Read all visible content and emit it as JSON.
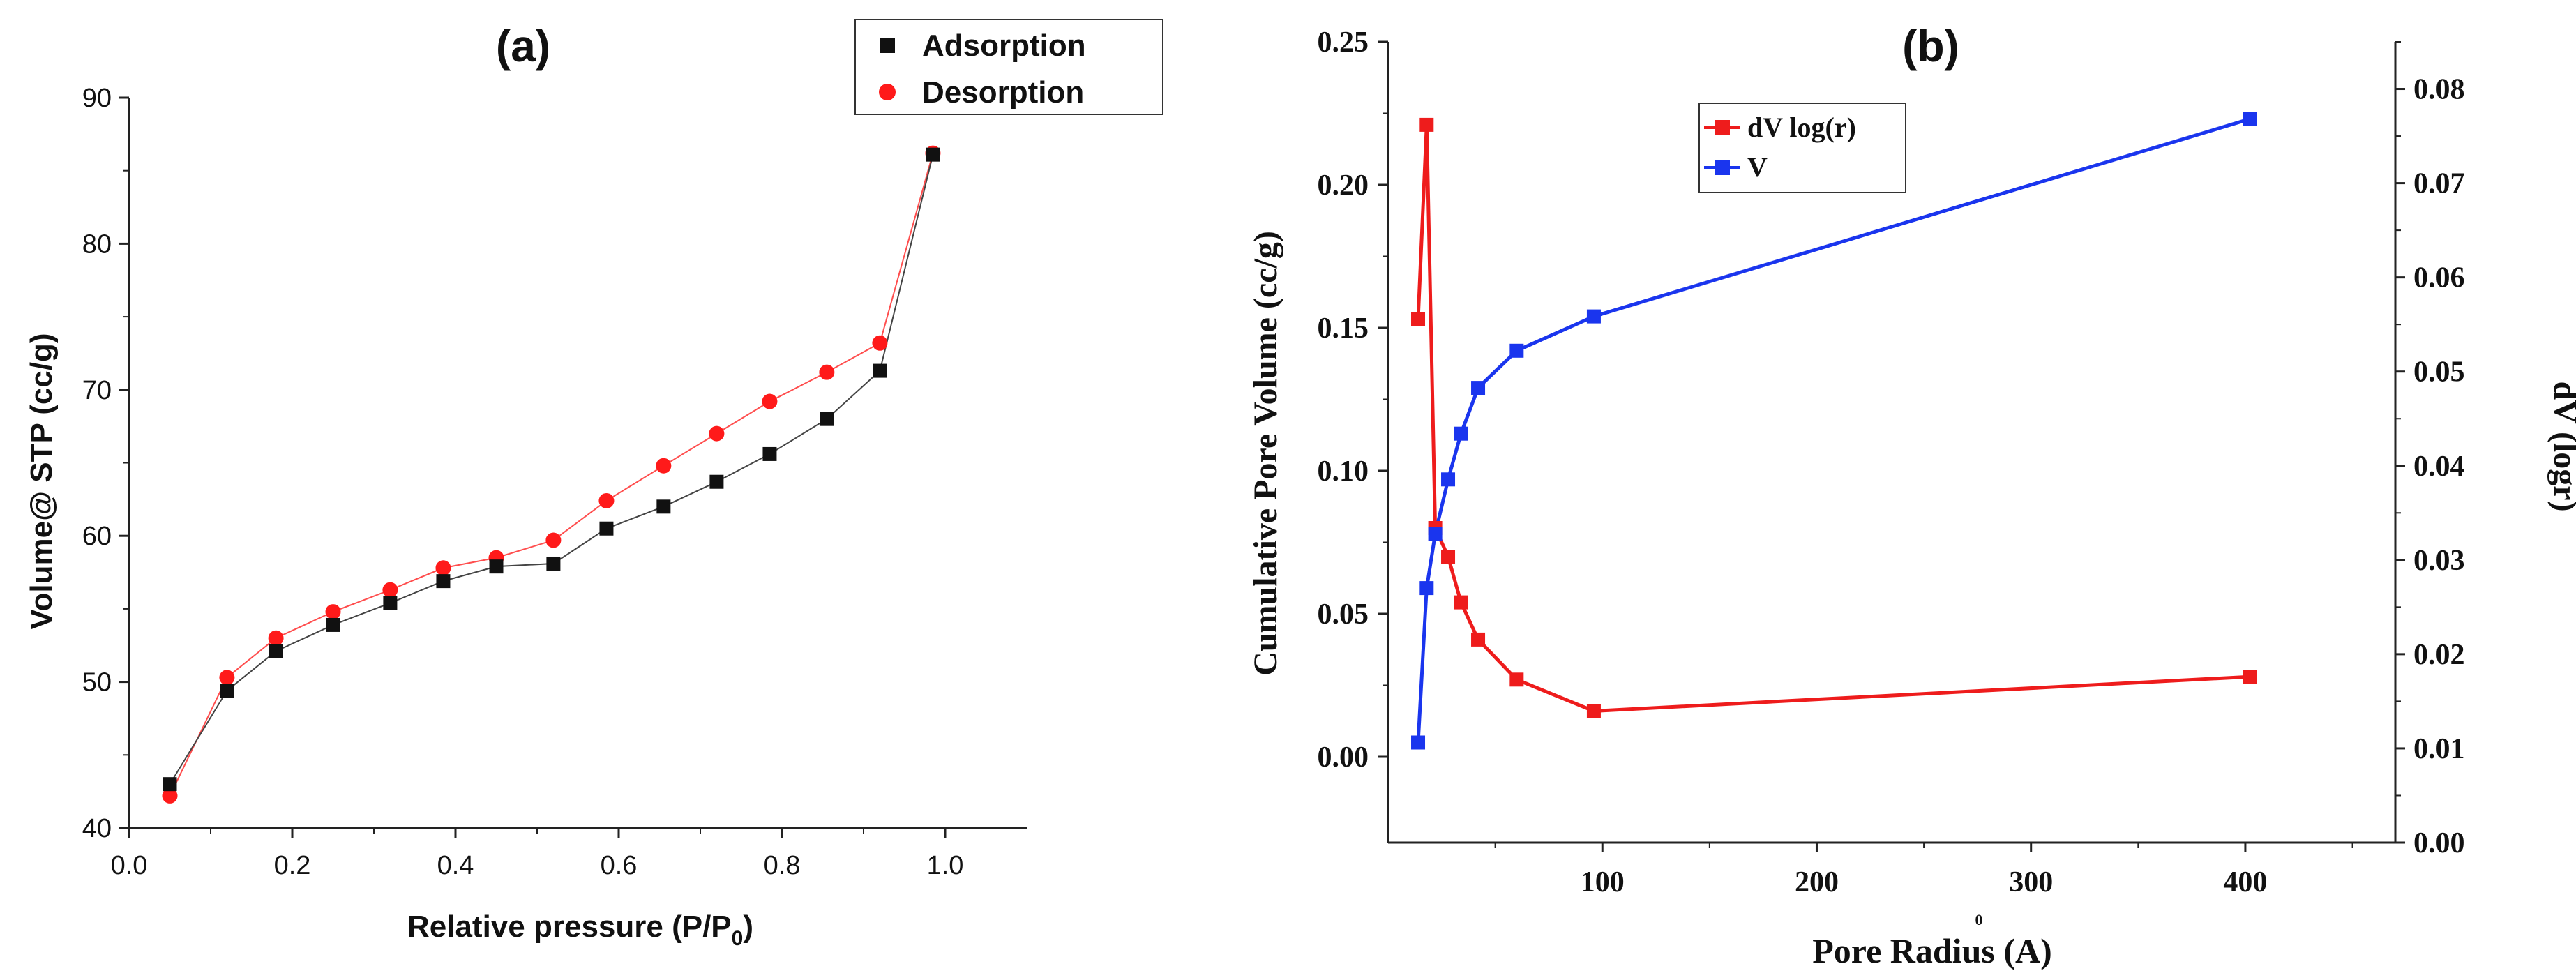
{
  "chart_data": [
    {
      "id": "a",
      "type": "line",
      "panel_label": "(a)",
      "title": "",
      "xlabel": "Relative pressure (P/P",
      "xlabel_sub": "0",
      "xlabel_close": ")",
      "ylabel": "Volume@ STP (cc/g)",
      "xlim": [
        0.0,
        1.1
      ],
      "ylim": [
        40,
        90
      ],
      "xticks": [
        0.0,
        0.2,
        0.4,
        0.6,
        0.8,
        1.0
      ],
      "xtick_labels": [
        "0.0",
        "0.2",
        "0.4",
        "0.6",
        "0.8",
        "1.0"
      ],
      "yticks": [
        40,
        50,
        60,
        70,
        80,
        90
      ],
      "ytick_labels": [
        "40",
        "50",
        "60",
        "70",
        "80",
        "90"
      ],
      "grid": false,
      "legend_position": "top-right",
      "series": [
        {
          "name": "Adsorption",
          "marker": "square",
          "color": "#111111",
          "x": [
            0.05,
            0.12,
            0.18,
            0.25,
            0.32,
            0.385,
            0.45,
            0.52,
            0.585,
            0.655,
            0.72,
            0.785,
            0.855,
            0.92,
            0.985
          ],
          "y": [
            43.0,
            49.4,
            52.1,
            53.9,
            55.4,
            56.9,
            57.9,
            58.1,
            60.5,
            62.0,
            63.7,
            65.6,
            68.0,
            71.3,
            86.1
          ]
        },
        {
          "name": "Desorption",
          "marker": "circle",
          "color": "#ff1a1a",
          "x": [
            0.05,
            0.12,
            0.18,
            0.25,
            0.32,
            0.385,
            0.45,
            0.52,
            0.585,
            0.655,
            0.72,
            0.785,
            0.855,
            0.92,
            0.985
          ],
          "y": [
            42.2,
            50.3,
            53.0,
            54.8,
            56.3,
            57.8,
            58.5,
            59.7,
            62.4,
            64.8,
            67.0,
            69.2,
            71.2,
            73.2,
            86.2
          ]
        }
      ]
    },
    {
      "id": "b",
      "type": "line",
      "panel_label": "(b)",
      "title": "",
      "xlabel": "Pore Radius (",
      "xlabel_unit": "A",
      "xlabel_unit_mark": "0",
      "xlabel_close": ")",
      "ylabel": "Cumulative Pore Volume (cc/g)",
      "ylabel_right": "dV (logr)",
      "xlim": [
        0,
        470
      ],
      "ylim": [
        -0.03,
        0.25
      ],
      "ylim_right": [
        0.0,
        0.085
      ],
      "xticks": [
        100,
        200,
        300,
        400
      ],
      "xtick_labels": [
        "100",
        "200",
        "300",
        "400"
      ],
      "yticks": [
        0.0,
        0.05,
        0.1,
        0.15,
        0.2,
        0.25
      ],
      "ytick_labels": [
        "0.00",
        "0.05",
        "0.10",
        "0.15",
        "0.20",
        "0.25"
      ],
      "yticks_right": [
        0.0,
        0.01,
        0.02,
        0.03,
        0.04,
        0.05,
        0.06,
        0.07,
        0.08
      ],
      "ytick_labels_right": [
        "0.00",
        "0.01",
        "0.02",
        "0.03",
        "0.04",
        "0.05",
        "0.06",
        "0.07",
        "0.08"
      ],
      "grid": false,
      "legend_position": "top-center",
      "series": [
        {
          "name": "dV log(r)",
          "axis": "left",
          "marker": "square",
          "color": "#ee1c1c",
          "x": [
            14,
            18,
            22,
            28,
            34,
            42,
            60,
            96,
            402
          ],
          "y": [
            0.153,
            0.221,
            0.08,
            0.07,
            0.054,
            0.041,
            0.027,
            0.016,
            0.028
          ]
        },
        {
          "name": "V",
          "axis": "left",
          "marker": "square",
          "color": "#1a35ee",
          "x": [
            14,
            18,
            22,
            28,
            34,
            42,
            60,
            96,
            402
          ],
          "y": [
            0.005,
            0.059,
            0.078,
            0.097,
            0.113,
            0.129,
            0.142,
            0.154,
            0.223
          ]
        }
      ]
    }
  ]
}
